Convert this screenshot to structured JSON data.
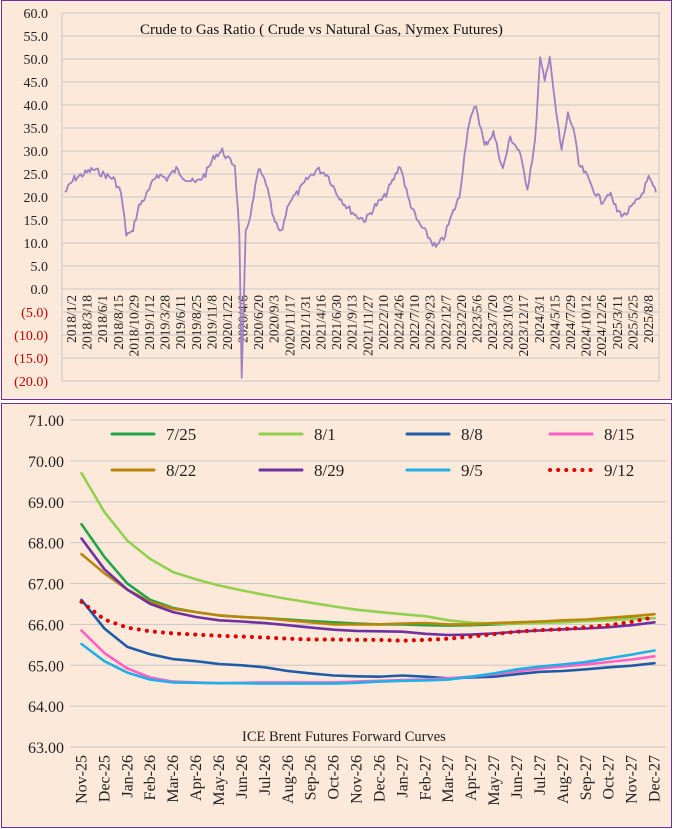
{
  "chart_data": [
    {
      "type": "line",
      "title": "Crude to Gas Ratio ( Crude vs Natural Gas, Nymex Futures)",
      "xlabel": "",
      "ylabel": "",
      "ylim": [
        -20,
        60
      ],
      "yticks": [
        "60.0",
        "55.0",
        "50.0",
        "45.0",
        "40.0",
        "35.0",
        "30.0",
        "25.0",
        "20.0",
        "15.0",
        "10.0",
        "5.0",
        "0.0",
        "(5.0)",
        "(10.0)",
        "(15.0)",
        "(20.0)"
      ],
      "xticks": [
        "2018/1/2",
        "2018/3/18",
        "2018/6/1",
        "2018/8/15",
        "2018/10/29",
        "2019/1/12",
        "2019/3/28",
        "2019/6/11",
        "2019/8/25",
        "2019/11/8",
        "2020/1/22",
        "2020/4/6",
        "2020/6/20",
        "2020/9/3",
        "2020/11/17",
        "2021/1/31",
        "2021/4/16",
        "2021/6/30",
        "2021/9/13",
        "2021/11/27",
        "2022/2/10",
        "2022/4/26",
        "2022/7/10",
        "2022/9/23",
        "2022/12/7",
        "2023/2/20",
        "2023/5/6",
        "2023/7/20",
        "2023/10/3",
        "2023/12/17",
        "2024/3/1",
        "2024/5/15",
        "2024/7/29",
        "2024/10/12",
        "2024/12/26",
        "2025/3/11",
        "2025/5/25",
        "2025/8/8"
      ],
      "line_color": "#9e80c3",
      "negative_tick_color": "#c00000",
      "grid": true,
      "series": [
        {
          "x": [
            "2018-01-02",
            "2018-02-15",
            "2018-04-01",
            "2018-05-15",
            "2018-07-01",
            "2018-08-20",
            "2018-09-25",
            "2018-10-20",
            "2018-11-15",
            "2018-12-20",
            "2019-02-01",
            "2019-03-15",
            "2019-05-01",
            "2019-06-15",
            "2019-08-01",
            "2019-09-15",
            "2019-11-01",
            "2019-12-15",
            "2020-01-20",
            "2020-02-20",
            "2020-03-20",
            "2020-04-10",
            "2020-04-21",
            "2020-05-10",
            "2020-06-10",
            "2020-07-10",
            "2020-08-15",
            "2020-09-20",
            "2020-10-25",
            "2020-12-01",
            "2021-01-15",
            "2021-03-01",
            "2021-04-15",
            "2021-06-01",
            "2021-07-15",
            "2021-09-01",
            "2021-10-15",
            "2021-12-01",
            "2022-01-15",
            "2022-03-01",
            "2022-04-15",
            "2022-05-15",
            "2022-06-20",
            "2022-08-01",
            "2022-09-01",
            "2022-10-01",
            "2022-11-01",
            "2022-12-07",
            "2023-01-15",
            "2023-02-20",
            "2023-04-01",
            "2023-05-10",
            "2023-06-20",
            "2023-08-01",
            "2023-09-15",
            "2023-10-20",
            "2023-12-01",
            "2024-01-10",
            "2024-02-15",
            "2024-03-10",
            "2024-04-01",
            "2024-04-25",
            "2024-05-20",
            "2024-06-20",
            "2024-07-20",
            "2024-08-15",
            "2024-09-10",
            "2024-10-12",
            "2024-11-15",
            "2024-12-26",
            "2025-02-01",
            "2025-03-11",
            "2025-04-15",
            "2025-05-25",
            "2025-06-30",
            "2025-08-08",
            "2025-09-12"
          ],
          "y": [
            21,
            24,
            25,
            26,
            25,
            24,
            21,
            12,
            12,
            18,
            21,
            25,
            24,
            26,
            24,
            23,
            25,
            29,
            30,
            28,
            27,
            12,
            -20,
            12,
            18,
            26,
            23,
            15,
            12,
            19,
            21,
            24,
            26,
            25,
            21,
            18,
            16,
            15,
            18,
            20,
            24,
            27,
            20,
            15,
            13,
            11,
            9,
            11,
            16,
            20,
            35,
            40,
            31,
            34,
            26,
            33,
            30,
            22,
            32,
            50,
            45,
            51,
            40,
            30,
            38,
            35,
            27,
            25,
            22,
            19,
            21,
            17,
            16,
            18,
            20,
            24,
            21
          ]
        }
      ]
    },
    {
      "type": "line",
      "title": "ICE Brent Futures Forward Curves",
      "xlabel": "",
      "ylabel": "",
      "ylim": [
        63,
        71
      ],
      "yticks": [
        "71.00",
        "70.00",
        "69.00",
        "68.00",
        "67.00",
        "66.00",
        "65.00",
        "64.00",
        "63.00"
      ],
      "categories": [
        "Nov-25",
        "Dec-25",
        "Jan-26",
        "Feb-26",
        "Mar-26",
        "Apr-26",
        "May-26",
        "Jun-26",
        "Jul-26",
        "Aug-26",
        "Sep-26",
        "Oct-26",
        "Nov-26",
        "Dec-26",
        "Jan-27",
        "Feb-27",
        "Mar-27",
        "Apr-27",
        "May-27",
        "Jun-27",
        "Jul-27",
        "Aug-27",
        "Sep-27",
        "Oct-27",
        "Nov-27",
        "Dec-27"
      ],
      "legend_position": "top",
      "grid": true,
      "series": [
        {
          "name": "7/25",
          "color": "#1fa64a",
          "dotted": false,
          "values": [
            68.45,
            67.65,
            67.0,
            66.6,
            66.4,
            66.3,
            66.22,
            66.18,
            66.15,
            66.12,
            66.08,
            66.05,
            66.02,
            66.0,
            66.0,
            65.98,
            65.97,
            65.98,
            66.0,
            66.02,
            66.05,
            66.08,
            66.1,
            66.12,
            66.14,
            66.15
          ]
        },
        {
          "name": "8/1",
          "color": "#92d050",
          "dotted": false,
          "values": [
            69.7,
            68.75,
            68.05,
            67.6,
            67.28,
            67.1,
            66.95,
            66.83,
            66.72,
            66.62,
            66.53,
            66.44,
            66.36,
            66.3,
            66.25,
            66.2,
            66.1,
            66.04,
            66.02,
            66.02,
            66.03,
            66.05,
            66.08,
            66.1,
            66.13,
            66.15
          ]
        },
        {
          "name": "8/8",
          "color": "#1f5ca8",
          "dotted": false,
          "values": [
            66.6,
            65.9,
            65.45,
            65.27,
            65.15,
            65.1,
            65.03,
            65.0,
            64.95,
            64.86,
            64.8,
            64.75,
            64.73,
            64.72,
            64.75,
            64.72,
            64.68,
            64.7,
            64.72,
            64.78,
            64.84,
            64.86,
            64.9,
            64.95,
            64.99,
            65.05
          ]
        },
        {
          "name": "8/15",
          "color": "#ff5fc8",
          "dotted": false,
          "values": [
            65.85,
            65.3,
            64.92,
            64.7,
            64.6,
            64.58,
            64.56,
            64.57,
            64.58,
            64.58,
            64.58,
            64.58,
            64.6,
            64.62,
            64.64,
            64.65,
            64.68,
            64.72,
            64.78,
            64.85,
            64.92,
            64.97,
            65.02,
            65.08,
            65.14,
            65.22
          ]
        },
        {
          "name": "8/22",
          "color": "#b8860b",
          "dotted": false,
          "values": [
            67.72,
            67.25,
            66.85,
            66.55,
            66.38,
            66.3,
            66.22,
            66.18,
            66.15,
            66.1,
            66.05,
            66.0,
            66.0,
            66.0,
            66.02,
            66.03,
            66.0,
            66.0,
            66.03,
            66.05,
            66.07,
            66.1,
            66.12,
            66.16,
            66.2,
            66.25
          ]
        },
        {
          "name": "8/29",
          "color": "#7030a0",
          "dotted": false,
          "values": [
            68.1,
            67.35,
            66.85,
            66.5,
            66.3,
            66.18,
            66.1,
            66.07,
            66.03,
            65.98,
            65.92,
            65.87,
            65.84,
            65.83,
            65.82,
            65.77,
            65.74,
            65.75,
            65.78,
            65.82,
            65.85,
            65.88,
            65.9,
            65.93,
            65.98,
            66.05
          ]
        },
        {
          "name": "9/5",
          "color": "#1fb0e8",
          "dotted": false,
          "values": [
            65.52,
            65.1,
            64.82,
            64.65,
            64.58,
            64.57,
            64.56,
            64.56,
            64.55,
            64.55,
            64.55,
            64.55,
            64.57,
            64.6,
            64.62,
            64.63,
            64.65,
            64.72,
            64.8,
            64.9,
            64.97,
            65.02,
            65.08,
            65.17,
            65.26,
            65.36
          ]
        },
        {
          "name": "9/12",
          "color": "#e00000",
          "dotted": true,
          "values": [
            66.55,
            66.12,
            65.92,
            65.83,
            65.78,
            65.75,
            65.72,
            65.7,
            65.68,
            65.65,
            65.63,
            65.63,
            65.62,
            65.62,
            65.6,
            65.62,
            65.65,
            65.7,
            65.76,
            65.82,
            65.86,
            65.88,
            65.93,
            65.98,
            66.06,
            66.18
          ]
        }
      ]
    }
  ]
}
